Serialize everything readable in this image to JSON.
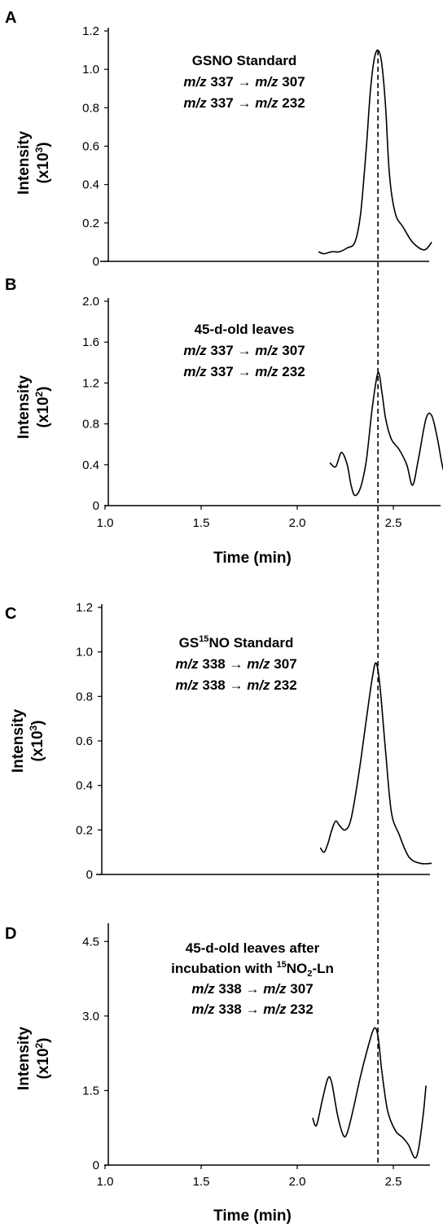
{
  "chart_data": [
    {
      "panel": "A",
      "type": "line",
      "ylabel": "Intensity",
      "ylabel_unit": "(x10",
      "ylabel_exp": "3",
      "ylim": [
        0,
        1.2
      ],
      "yticks": [
        "0",
        "0.2",
        "0.4",
        "0.6",
        "0.8",
        "1.0",
        "1.2"
      ],
      "xlim": [
        1.0,
        2.8
      ],
      "annotation": [
        [
          {
            "t": "GSNO Standard",
            "i": false
          }
        ],
        [
          {
            "t": "m/z",
            "i": true
          },
          {
            "t": " 337 ",
            "i": false
          },
          {
            "t": "→ ",
            "i": false
          },
          {
            "t": "m/z",
            "i": true
          },
          {
            "t": " 307",
            "i": false
          }
        ],
        [
          {
            "t": "m/z",
            "i": true
          },
          {
            "t": " 337 ",
            "i": false
          },
          {
            "t": "→ ",
            "i": false
          },
          {
            "t": "m/z",
            "i": true
          },
          {
            "t": " 232",
            "i": false
          }
        ]
      ],
      "x": [
        2.11,
        2.14,
        2.18,
        2.22,
        2.26,
        2.3,
        2.33,
        2.36,
        2.38,
        2.4,
        2.42,
        2.44,
        2.46,
        2.48,
        2.51,
        2.55,
        2.6,
        2.66,
        2.7
      ],
      "y": [
        0.05,
        0.04,
        0.05,
        0.05,
        0.07,
        0.1,
        0.25,
        0.6,
        0.88,
        1.05,
        1.1,
        1.03,
        0.8,
        0.45,
        0.25,
        0.18,
        0.1,
        0.06,
        0.1
      ]
    },
    {
      "panel": "B",
      "type": "line",
      "ylabel": "Intensity",
      "ylabel_unit": "(x10",
      "ylabel_exp": "2",
      "ylim": [
        0,
        2.0
      ],
      "yticks": [
        "0",
        "0.4",
        "0.8",
        "1.2",
        "1.6",
        "2.0"
      ],
      "xlim": [
        1.0,
        2.8
      ],
      "xticks": [
        "1.0",
        "1.5",
        "2.0",
        "2.5"
      ],
      "xlabel": "Time (min)",
      "annotation": [
        [
          {
            "t": "45-d-old leaves",
            "i": false
          }
        ],
        [
          {
            "t": "m/z",
            "i": true
          },
          {
            "t": " 337 ",
            "i": false
          },
          {
            "t": "→ ",
            "i": false
          },
          {
            "t": "m/z",
            "i": true
          },
          {
            "t": " 307",
            "i": false
          }
        ],
        [
          {
            "t": "m/z",
            "i": true
          },
          {
            "t": " 337 ",
            "i": false
          },
          {
            "t": "→ ",
            "i": false
          },
          {
            "t": "m/z",
            "i": true
          },
          {
            "t": " 232",
            "i": false
          }
        ]
      ],
      "x": [
        2.17,
        2.2,
        2.23,
        2.26,
        2.28,
        2.3,
        2.33,
        2.36,
        2.39,
        2.42,
        2.44,
        2.46,
        2.49,
        2.53,
        2.57,
        2.6,
        2.63,
        2.67,
        2.7,
        2.73,
        2.76,
        2.79
      ],
      "y": [
        0.42,
        0.38,
        0.52,
        0.4,
        0.2,
        0.1,
        0.18,
        0.45,
        0.95,
        1.3,
        1.12,
        0.85,
        0.65,
        0.55,
        0.4,
        0.2,
        0.45,
        0.85,
        0.88,
        0.65,
        0.35,
        0.25
      ]
    },
    {
      "panel": "C",
      "type": "line",
      "ylabel": "Intensity",
      "ylabel_unit": "(x10",
      "ylabel_exp": "3",
      "ylim": [
        0,
        1.2
      ],
      "yticks": [
        "0",
        "0.2",
        "0.4",
        "0.6",
        "0.8",
        "1.0",
        "1.2"
      ],
      "xlim": [
        1.0,
        2.8
      ],
      "annotation": [
        [
          {
            "t": "GS",
            "i": false
          },
          {
            "t": "15",
            "i": false,
            "sup": true
          },
          {
            "t": "NO Standard",
            "i": false
          }
        ],
        [
          {
            "t": "m/z",
            "i": true
          },
          {
            "t": " 338 ",
            "i": false
          },
          {
            "t": "→ ",
            "i": false
          },
          {
            "t": "m/z",
            "i": true
          },
          {
            "t": " 307",
            "i": false
          }
        ],
        [
          {
            "t": "m/z",
            "i": true
          },
          {
            "t": " 338 ",
            "i": false
          },
          {
            "t": "→ ",
            "i": false
          },
          {
            "t": "m/z",
            "i": true
          },
          {
            "t": " 232",
            "i": false
          }
        ]
      ],
      "x": [
        2.12,
        2.14,
        2.16,
        2.18,
        2.2,
        2.22,
        2.25,
        2.28,
        2.32,
        2.36,
        2.39,
        2.41,
        2.43,
        2.46,
        2.49,
        2.53,
        2.58,
        2.64,
        2.7
      ],
      "y": [
        0.12,
        0.1,
        0.14,
        0.2,
        0.24,
        0.22,
        0.2,
        0.25,
        0.45,
        0.7,
        0.88,
        0.95,
        0.85,
        0.55,
        0.28,
        0.18,
        0.08,
        0.05,
        0.05
      ]
    },
    {
      "panel": "D",
      "type": "line",
      "ylabel": "Intensity",
      "ylabel_unit": "(x10",
      "ylabel_exp": "2",
      "ylim": [
        0,
        4.8
      ],
      "yticks": [
        "0",
        "1.5",
        "3.0",
        "4.5"
      ],
      "xlim": [
        1.0,
        2.7
      ],
      "xticks": [
        "1.0",
        "1.5",
        "2.0",
        "2.5"
      ],
      "xlabel": "Time (min)",
      "annotation": [
        [
          {
            "t": "45-d-old leaves after",
            "i": false
          }
        ],
        [
          {
            "t": "incubation with ",
            "i": false
          },
          {
            "t": "15",
            "i": false,
            "sup": true
          },
          {
            "t": "NO",
            "i": false
          },
          {
            "t": "2",
            "i": false,
            "sub": true
          },
          {
            "t": "-Ln",
            "i": false
          }
        ],
        [
          {
            "t": "m/z",
            "i": true
          },
          {
            "t": " 338 ",
            "i": false
          },
          {
            "t": "→ ",
            "i": false
          },
          {
            "t": "m/z",
            "i": true
          },
          {
            "t": " 307",
            "i": false
          }
        ],
        [
          {
            "t": "m/z",
            "i": true
          },
          {
            "t": " 338 ",
            "i": false
          },
          {
            "t": "→ ",
            "i": false
          },
          {
            "t": "m/z",
            "i": true
          },
          {
            "t": " 232",
            "i": false
          }
        ]
      ],
      "x": [
        2.08,
        2.1,
        2.13,
        2.16,
        2.18,
        2.21,
        2.24,
        2.26,
        2.29,
        2.33,
        2.37,
        2.4,
        2.42,
        2.44,
        2.47,
        2.51,
        2.55,
        2.58,
        2.61,
        2.63,
        2.655,
        2.67
      ],
      "y": [
        0.95,
        0.8,
        1.3,
        1.75,
        1.65,
        1.0,
        0.6,
        0.65,
        1.1,
        1.8,
        2.4,
        2.75,
        2.6,
        1.9,
        1.1,
        0.7,
        0.55,
        0.4,
        0.15,
        0.3,
        1.0,
        1.6
      ]
    }
  ],
  "dashed_line_x": 2.42
}
